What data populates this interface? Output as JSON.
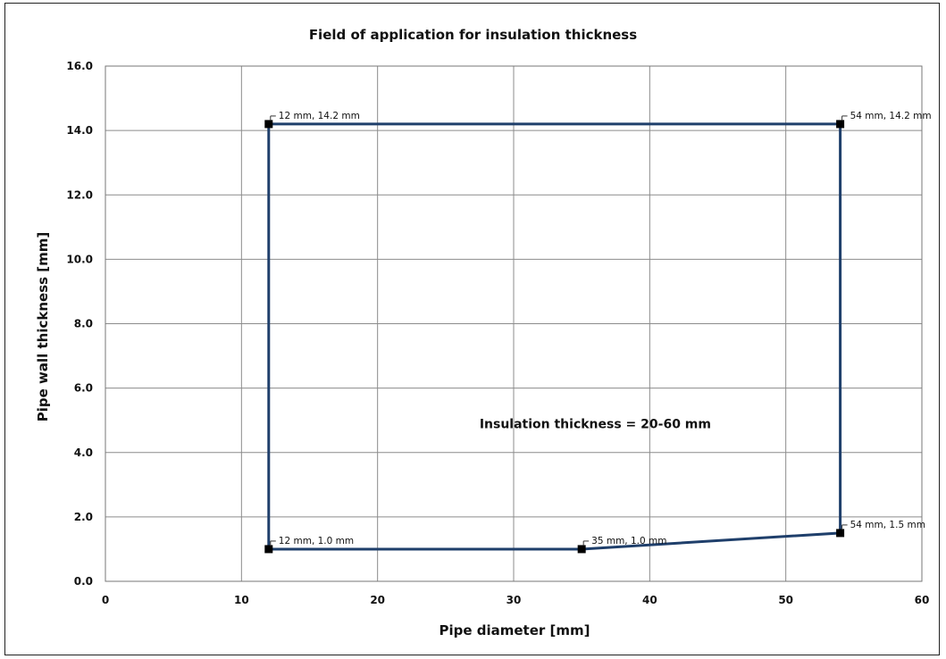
{
  "chart_data": {
    "type": "line",
    "title": "Field of application for insulation thickness",
    "xlabel": "Pipe diameter [mm]",
    "ylabel": "Pipe wall thickness [mm]",
    "xlim": [
      0,
      60
    ],
    "ylim": [
      0,
      16
    ],
    "xticks": [
      0,
      10,
      20,
      30,
      40,
      50,
      60
    ],
    "xtick_labels": [
      "0",
      "10",
      "20",
      "30",
      "40",
      "50",
      "60"
    ],
    "yticks": [
      0,
      2,
      4,
      6,
      8,
      10,
      12,
      14,
      16
    ],
    "ytick_labels": [
      "0.0",
      "2.0",
      "4.0",
      "6.0",
      "8.0",
      "10.0",
      "12.0",
      "14.0",
      "16.0"
    ],
    "grid": true,
    "color": "#1F3F6B",
    "series": [
      {
        "x": [
          12,
          12,
          35,
          54,
          54,
          12
        ],
        "y": [
          14.2,
          1.0,
          1.0,
          1.5,
          14.2,
          14.2
        ]
      }
    ],
    "points": [
      {
        "x": 12,
        "y": 14.2,
        "label": "12 mm, 14.2 mm"
      },
      {
        "x": 54,
        "y": 14.2,
        "label": "54 mm, 14.2 mm"
      },
      {
        "x": 12,
        "y": 1.0,
        "label": "12 mm, 1.0 mm"
      },
      {
        "x": 35,
        "y": 1.0,
        "label": "35 mm, 1.0 mm"
      },
      {
        "x": 54,
        "y": 1.5,
        "label": "54 mm, 1.5 mm"
      }
    ],
    "annotations": [
      {
        "text": "Insulation thickness = 20-60 mm",
        "x": 36,
        "y": 4.75
      }
    ]
  }
}
